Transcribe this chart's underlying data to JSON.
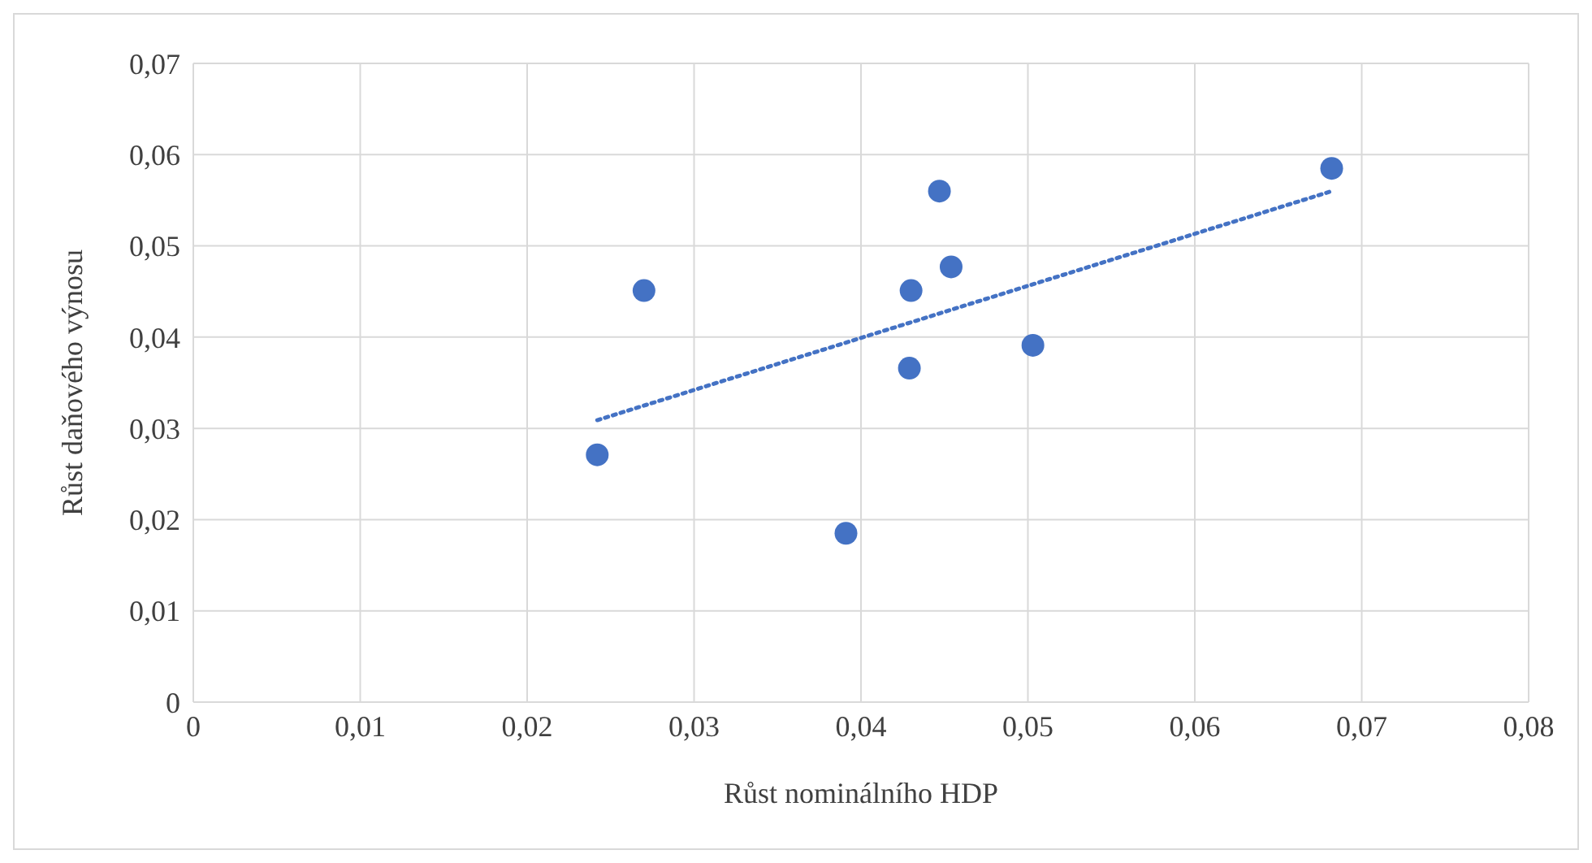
{
  "chart_data": {
    "type": "scatter",
    "xlabel": "Růst nominálního HDP",
    "ylabel": "Růst daňového výnosu",
    "xlim": [
      0,
      0.08
    ],
    "xticks": [
      0,
      {
        "value": 0.01,
        "label": "0,01"
      },
      {
        "value": 0.02,
        "label": "0,02"
      },
      {
        "value": 0.03,
        "label": "0,03"
      },
      {
        "value": 0.04,
        "label": "0,04"
      },
      {
        "value": 0.05,
        "label": "0,05"
      },
      {
        "value": 0.06,
        "label": "0,06"
      },
      {
        "value": 0.07,
        "label": "0,07"
      },
      {
        "value": 0.08,
        "label": "0,08"
      }
    ],
    "ylim": [
      0,
      0.07
    ],
    "yticks": [
      0,
      {
        "value": 0.01,
        "label": "0,01"
      },
      {
        "value": 0.02,
        "label": "0,02"
      },
      {
        "value": 0.03,
        "label": "0,03"
      },
      {
        "value": 0.04,
        "label": "0,04"
      },
      {
        "value": 0.05,
        "label": "0,05"
      },
      {
        "value": 0.06,
        "label": "0,06"
      },
      {
        "value": 0.07,
        "label": "0,07"
      }
    ],
    "grid": true,
    "series": [
      {
        "color": "#4472c4",
        "marker": "circle",
        "x": [
          0.0242,
          0.027,
          0.0391,
          0.0429,
          0.043,
          0.0447,
          0.0454,
          0.0503,
          0.0682
        ],
        "values": [
          0.0271,
          0.0451,
          0.0185,
          0.0366,
          0.0451,
          0.056,
          0.0477,
          0.0391,
          0.0585
        ]
      },
      {
        "type": "line",
        "color": "#4472c4",
        "line_style": "dotted",
        "marker": "none",
        "x": [
          0.0242,
          0.0682
        ],
        "values": [
          0.0309,
          0.056
        ]
      }
    ]
  }
}
